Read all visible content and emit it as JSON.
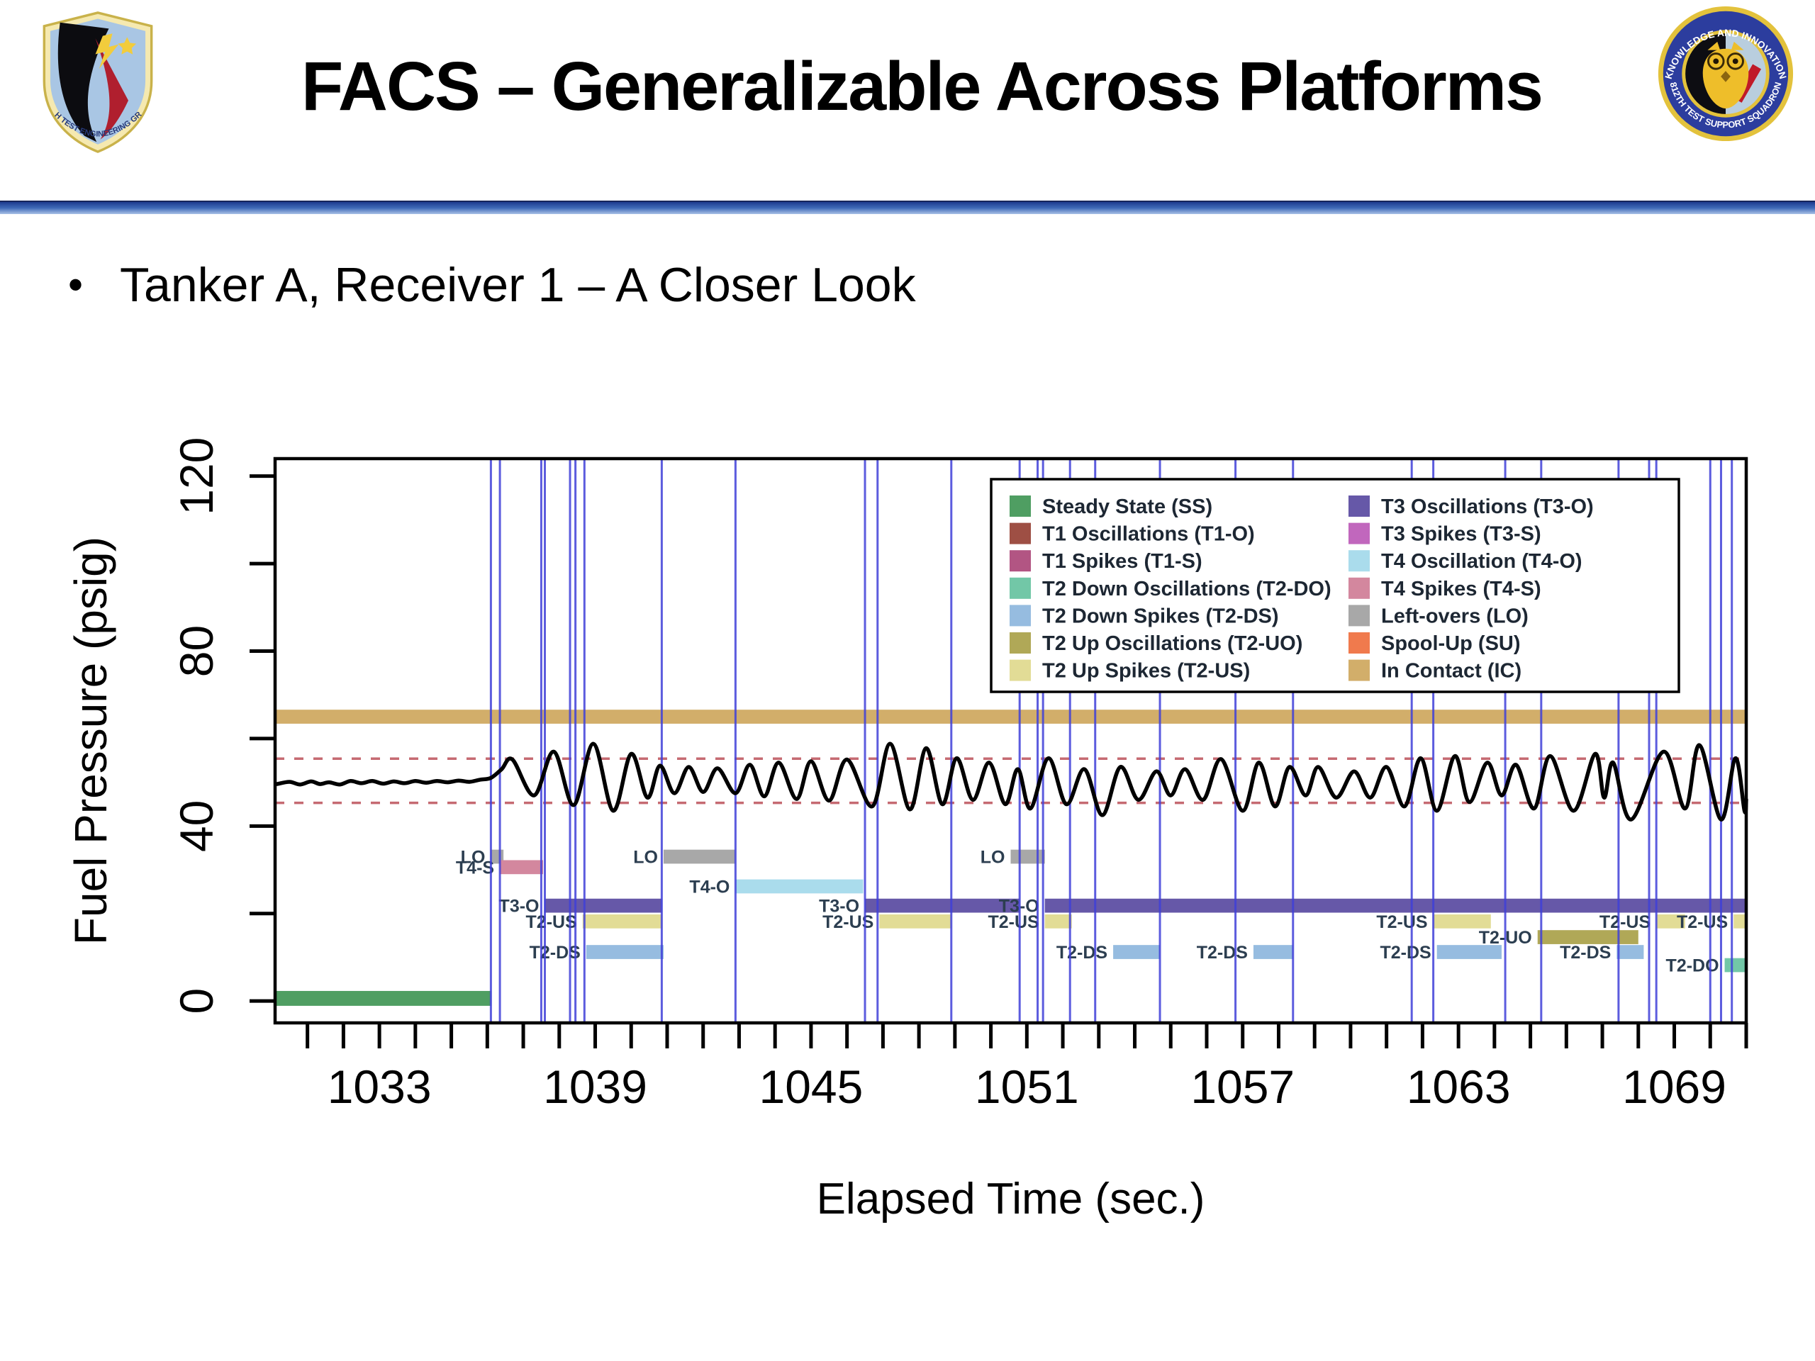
{
  "slide": {
    "title": "FACS – Generalizable Across Platforms",
    "bullet_marker": "•",
    "bullet": "Tanker A, Receiver 1 – A Closer Look"
  },
  "logos": {
    "left": {
      "title": "412th Test Engineering Group emblem",
      "arc_text": "412TH TEST ENGINEERING GROUP"
    },
    "right": {
      "title": "812th Test Support Squadron emblem",
      "arc_top": "KNOWLEDGE AND INNOVATION",
      "arc_bottom": "812TH TEST SUPPORT SQUADRON"
    }
  },
  "chart_data": {
    "type": "line",
    "title": "",
    "xlabel": "Elapsed Time (sec.)",
    "ylabel": "Fuel Pressure (psig)",
    "xlim": [
      1030.1,
      1071.0
    ],
    "ylim": [
      -5,
      124
    ],
    "grid": false,
    "x_tick_step": 1,
    "x_labeled_ticks": [
      "1033",
      "1039",
      "1045",
      "1051",
      "1057",
      "1063",
      "1069"
    ],
    "y_tick_step": 20,
    "y_labeled_ticks": [
      "0",
      "40",
      "80",
      "120"
    ],
    "categories": {
      "SS": {
        "label": "Steady State (SS)",
        "color": "#4f9e62"
      },
      "T1-O": {
        "label": "T1 Oscillations (T1-O)",
        "color": "#9e4f44"
      },
      "T1-S": {
        "label": "T1 Spikes (T1-S)",
        "color": "#b25583"
      },
      "T2-DO": {
        "label": "T2 Down Oscillations (T2-DO)",
        "color": "#72c7a7"
      },
      "T2-DS": {
        "label": "T2 Down Spikes (T2-DS)",
        "color": "#96bce0"
      },
      "T2-UO": {
        "label": "T2 Up Oscillations (T2-UO)",
        "color": "#b0a857"
      },
      "T2-US": {
        "label": "T2 Up Spikes (T2-US)",
        "color": "#e2dc96"
      },
      "T3-O": {
        "label": "T3 Oscillations (T3-O)",
        "color": "#6658a8"
      },
      "T3-S": {
        "label": "T3 Spikes (T3-S)",
        "color": "#c167bd"
      },
      "T4-O": {
        "label": "T4 Oscillation (T4-O)",
        "color": "#aadcec"
      },
      "T4-S": {
        "label": "T4 Spikes (T4-S)",
        "color": "#d3879e"
      },
      "LO": {
        "label": "Left-overs (LO)",
        "color": "#a8a8a8"
      },
      "SU": {
        "label": "Spool-Up (SU)",
        "color": "#f07a4d"
      },
      "IC": {
        "label": "In Contact (IC)",
        "color": "#d2ae6a"
      }
    },
    "legend_position": "top-right",
    "legend_columns": [
      [
        "SS",
        "T1-O",
        "T1-S",
        "T2-DO",
        "T2-DS",
        "T2-UO",
        "T2-US"
      ],
      [
        "T3-O",
        "T3-S",
        "T4-O",
        "T4-S",
        "LO",
        "SU",
        "IC"
      ]
    ],
    "reference_lines": [
      {
        "psig": 55.4,
        "style": "dashed",
        "color": "#c56a72"
      },
      {
        "psig": 45.3,
        "style": "dashed",
        "color": "#c56a72"
      }
    ],
    "in_contact_band": {
      "code": "IC",
      "t0": 1030.1,
      "t1": 1071.0,
      "psig": 65.0,
      "height_psig": 3.2
    },
    "event_boundary_color": "#4040d8",
    "event_boundaries_sec": [
      1036.1,
      1036.35,
      1037.5,
      1037.6,
      1038.3,
      1038.45,
      1038.7,
      1040.85,
      1042.9,
      1046.5,
      1046.85,
      1048.9,
      1050.8,
      1051.3,
      1051.45,
      1052.2,
      1052.9,
      1054.7,
      1056.8,
      1058.4,
      1061.7,
      1062.3,
      1064.3,
      1065.3,
      1067.45,
      1068.3,
      1068.5,
      1070.0,
      1070.3,
      1070.6
    ],
    "segments": [
      {
        "code": "SS",
        "label": "",
        "t0": 1030.1,
        "t1": 1036.1,
        "psig": 0.6,
        "height_psig": 3.4
      },
      {
        "code": "LO",
        "label": "LO",
        "t0": 1036.1,
        "t1": 1036.45,
        "psig": 33.0
      },
      {
        "code": "T4-S",
        "label": "T4-S",
        "t0": 1036.35,
        "t1": 1037.55,
        "psig": 30.6
      },
      {
        "code": "T3-O",
        "label": "T3-O",
        "t0": 1037.6,
        "t1": 1040.85,
        "psig": 21.8
      },
      {
        "code": "T2-US",
        "label": "T2-US",
        "t0": 1038.65,
        "t1": 1040.85,
        "psig": 18.2
      },
      {
        "code": "T2-DS",
        "label": "T2-DS",
        "t0": 1038.75,
        "t1": 1040.9,
        "psig": 11.2
      },
      {
        "code": "LO",
        "label": "LO",
        "t0": 1040.9,
        "t1": 1042.9,
        "psig": 33.0
      },
      {
        "code": "T4-O",
        "label": "T4-O",
        "t0": 1042.9,
        "t1": 1046.45,
        "psig": 26.2
      },
      {
        "code": "T3-O",
        "label": "T3-O",
        "t0": 1046.5,
        "t1": 1050.8,
        "psig": 21.8
      },
      {
        "code": "T2-US",
        "label": "T2-US",
        "t0": 1046.9,
        "t1": 1048.9,
        "psig": 18.2
      },
      {
        "code": "LO",
        "label": "LO",
        "t0": 1050.55,
        "t1": 1051.5,
        "psig": 33.0
      },
      {
        "code": "T3-O",
        "label": "T3-O",
        "t0": 1051.5,
        "t1": 1071.0,
        "psig": 21.8
      },
      {
        "code": "T2-US",
        "label": "T2-US",
        "t0": 1051.5,
        "t1": 1052.25,
        "psig": 18.2
      },
      {
        "code": "T2-DS",
        "label": "T2-DS",
        "t0": 1053.4,
        "t1": 1054.7,
        "psig": 11.2
      },
      {
        "code": "T2-DS",
        "label": "T2-DS",
        "t0": 1057.3,
        "t1": 1058.4,
        "psig": 11.2
      },
      {
        "code": "T2-US",
        "label": "T2-US",
        "t0": 1062.3,
        "t1": 1063.9,
        "psig": 18.2
      },
      {
        "code": "T2-DS",
        "label": "T2-DS",
        "t0": 1062.4,
        "t1": 1064.2,
        "psig": 11.2
      },
      {
        "code": "T2-UO",
        "label": "T2-UO",
        "t0": 1065.2,
        "t1": 1068.0,
        "psig": 14.6
      },
      {
        "code": "T2-DS",
        "label": "T2-DS",
        "t0": 1067.4,
        "t1": 1068.15,
        "psig": 11.2
      },
      {
        "code": "T2-US",
        "label": "T2-US",
        "t0": 1068.5,
        "t1": 1069.3,
        "psig": 18.2
      },
      {
        "code": "T2-DO",
        "label": "T2-DO",
        "t0": 1070.4,
        "t1": 1071.0,
        "psig": 8.2
      },
      {
        "code": "T2-US",
        "label": "T2-US",
        "t0": 1070.65,
        "t1": 1071.0,
        "psig": 18.2
      }
    ],
    "trace": {
      "name": "fuel-pressure-trace",
      "color": "#000000",
      "points": [
        [
          1030.15,
          49.6
        ],
        [
          1030.5,
          50.1
        ],
        [
          1030.8,
          49.5
        ],
        [
          1031.1,
          50.2
        ],
        [
          1031.35,
          49.6
        ],
        [
          1031.6,
          50.0
        ],
        [
          1031.9,
          49.5
        ],
        [
          1032.2,
          50.3
        ],
        [
          1032.5,
          49.8
        ],
        [
          1032.8,
          50.3
        ],
        [
          1033.1,
          49.7
        ],
        [
          1033.4,
          50.2
        ],
        [
          1033.7,
          49.8
        ],
        [
          1034.0,
          50.3
        ],
        [
          1034.3,
          49.9
        ],
        [
          1034.6,
          50.3
        ],
        [
          1034.9,
          50.0
        ],
        [
          1035.2,
          50.4
        ],
        [
          1035.5,
          50.1
        ],
        [
          1035.8,
          50.6
        ],
        [
          1036.1,
          51.0
        ],
        [
          1036.4,
          53.0
        ],
        [
          1036.7,
          55.2
        ],
        [
          1037.3,
          47.0
        ],
        [
          1037.85,
          57.0
        ],
        [
          1038.4,
          44.8
        ],
        [
          1038.95,
          58.8
        ],
        [
          1039.5,
          43.5
        ],
        [
          1040.0,
          56.5
        ],
        [
          1040.45,
          46.5
        ],
        [
          1040.8,
          53.8
        ],
        [
          1041.2,
          47.5
        ],
        [
          1041.6,
          53.5
        ],
        [
          1042.0,
          47.8
        ],
        [
          1042.4,
          53.2
        ],
        [
          1042.9,
          47.5
        ],
        [
          1043.3,
          54.0
        ],
        [
          1043.7,
          46.8
        ],
        [
          1044.1,
          54.5
        ],
        [
          1044.6,
          46.2
        ],
        [
          1045.0,
          54.8
        ],
        [
          1045.5,
          45.8
        ],
        [
          1046.0,
          55.2
        ],
        [
          1046.7,
          44.5
        ],
        [
          1047.2,
          58.8
        ],
        [
          1047.75,
          43.8
        ],
        [
          1048.2,
          57.8
        ],
        [
          1048.65,
          45.0
        ],
        [
          1049.05,
          55.5
        ],
        [
          1049.5,
          46.0
        ],
        [
          1049.95,
          54.5
        ],
        [
          1050.4,
          45.0
        ],
        [
          1050.75,
          53.0
        ],
        [
          1051.1,
          44.0
        ],
        [
          1051.6,
          55.5
        ],
        [
          1052.1,
          45.0
        ],
        [
          1052.6,
          53.0
        ],
        [
          1053.1,
          42.5
        ],
        [
          1053.6,
          53.5
        ],
        [
          1054.1,
          46.0
        ],
        [
          1054.6,
          52.5
        ],
        [
          1055.0,
          47.0
        ],
        [
          1055.4,
          53.0
        ],
        [
          1055.9,
          46.0
        ],
        [
          1056.4,
          55.3
        ],
        [
          1057.0,
          43.5
        ],
        [
          1057.45,
          54.5
        ],
        [
          1057.9,
          44.5
        ],
        [
          1058.3,
          53.5
        ],
        [
          1058.75,
          47.0
        ],
        [
          1059.1,
          53.5
        ],
        [
          1059.6,
          46.5
        ],
        [
          1060.1,
          52.5
        ],
        [
          1060.55,
          46.5
        ],
        [
          1061.0,
          53.5
        ],
        [
          1061.5,
          44.5
        ],
        [
          1061.95,
          55.5
        ],
        [
          1062.4,
          43.5
        ],
        [
          1062.9,
          56.0
        ],
        [
          1063.3,
          45.5
        ],
        [
          1063.8,
          54.5
        ],
        [
          1064.2,
          47.0
        ],
        [
          1064.6,
          54.0
        ],
        [
          1065.1,
          44.0
        ],
        [
          1065.55,
          56.0
        ],
        [
          1066.2,
          43.5
        ],
        [
          1066.8,
          56.5
        ],
        [
          1067.05,
          46.5
        ],
        [
          1067.3,
          54.5
        ],
        [
          1067.8,
          41.5
        ],
        [
          1068.7,
          57.0
        ],
        [
          1069.3,
          44.0
        ],
        [
          1069.7,
          58.5
        ],
        [
          1070.3,
          41.5
        ],
        [
          1070.7,
          55.5
        ],
        [
          1070.95,
          43.5
        ],
        [
          1071.0,
          46.0
        ]
      ]
    }
  }
}
